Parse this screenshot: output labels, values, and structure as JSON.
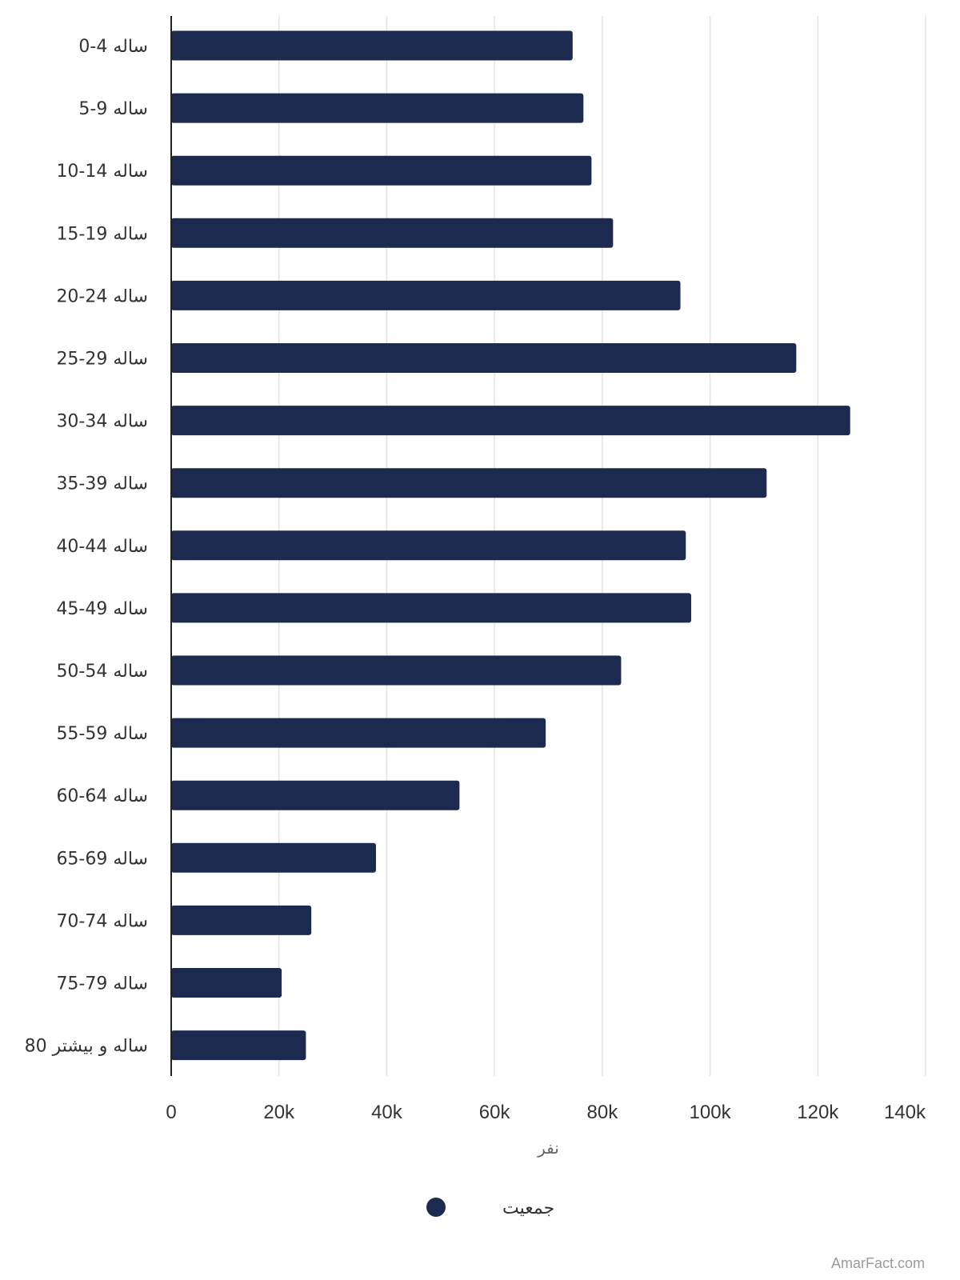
{
  "chart_data": {
    "type": "bar",
    "orientation": "horizontal",
    "categories": [
      "0-4 ساله",
      "5-9 ساله",
      "10-14 ساله",
      "15-19 ساله",
      "20-24 ساله",
      "25-29 ساله",
      "30-34 ساله",
      "35-39 ساله",
      "40-44 ساله",
      "45-49 ساله",
      "50-54 ساله",
      "55-59 ساله",
      "60-64 ساله",
      "65-69 ساله",
      "70-74 ساله",
      "75-79 ساله",
      "80 ساله و بیشتر"
    ],
    "series": [
      {
        "name": "جمعیت",
        "color": "#1b2a4e",
        "values": [
          74500,
          76500,
          78000,
          82000,
          94500,
          116000,
          126000,
          110500,
          95500,
          96500,
          83500,
          69500,
          53500,
          38000,
          26000,
          20500,
          25000
        ]
      }
    ],
    "xlim": [
      0,
      140000
    ],
    "xticks": [
      0,
      20000,
      40000,
      60000,
      80000,
      100000,
      120000,
      140000
    ],
    "xtick_labels": [
      "0",
      "20k",
      "40k",
      "60k",
      "80k",
      "100k",
      "120k",
      "140k"
    ],
    "xlabel": "نفر",
    "ylabel": "",
    "grid": true,
    "legend_position": "bottom-center"
  },
  "watermark": "AmarFact.com"
}
